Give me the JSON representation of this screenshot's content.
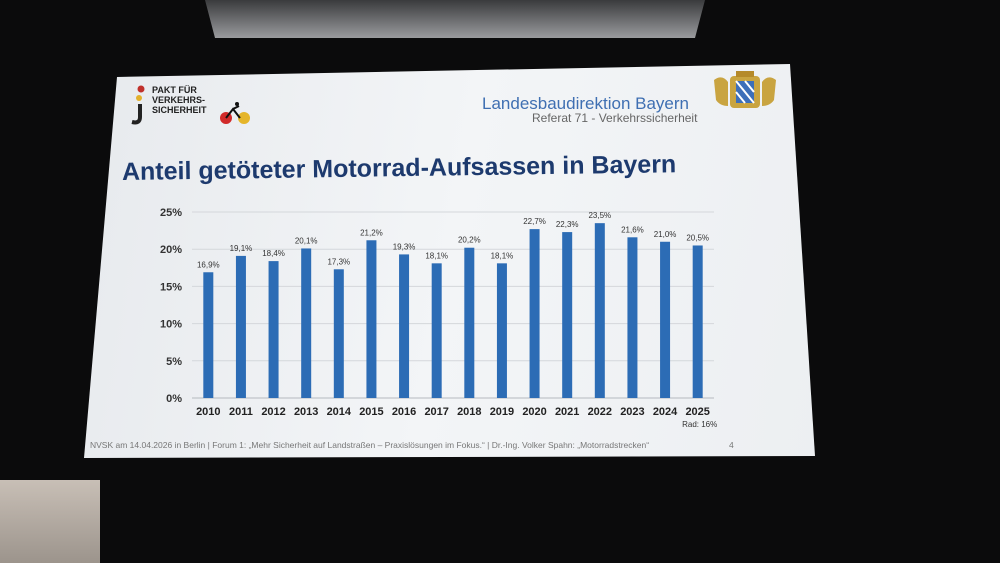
{
  "slide": {
    "logo_text": "PAKT FÜR\nVERKEHRS-\nSICHERHEIT",
    "org_name": "Landesbaudirektion Bayern",
    "org_sub": "Referat 71 - Verkehrssicherheit",
    "title": "Anteil getöteter Motorrad-Aufsassen in Bayern",
    "footer": "NVSK am 14.04.2026 in Berlin  |  Forum 1: „Mehr Sicherheit auf Landstraßen – Praxislösungen im Fokus.“  |  Dr.-Ing. Volker Spahn: „Motorradstrecken“",
    "page_number": "4"
  },
  "colors": {
    "bar": "#2c6cb5",
    "title": "#1d3a6e",
    "org_name": "#3f6fb2"
  },
  "icons": [
    "pakt-logo-icon",
    "bicycle-icon",
    "bavarian-crest-icon"
  ],
  "chart_data": {
    "type": "bar",
    "title": "",
    "xlabel": "",
    "ylabel": "",
    "categories": [
      "2010",
      "2011",
      "2012",
      "2013",
      "2014",
      "2015",
      "2016",
      "2017",
      "2018",
      "2019",
      "2020",
      "2021",
      "2022",
      "2023",
      "2024",
      "2025"
    ],
    "values": [
      16.9,
      19.1,
      18.4,
      20.1,
      17.3,
      21.2,
      19.3,
      18.1,
      20.2,
      18.1,
      22.7,
      22.3,
      23.5,
      21.6,
      21.0,
      20.5
    ],
    "value_labels": [
      "16,9%",
      "19,1%",
      "18,4%",
      "20,1%",
      "17,3%",
      "21,2%",
      "19,3%",
      "18,1%",
      "20,2%",
      "18,1%",
      "22,7%",
      "22,3%",
      "23,5%",
      "21,6%",
      "21,0%",
      "20,5%"
    ],
    "yticks": [
      "0%",
      "5%",
      "10%",
      "15%",
      "20%",
      "25%"
    ],
    "ylim": [
      0,
      25
    ],
    "grid": true,
    "annotation": "Rad: 16%"
  }
}
